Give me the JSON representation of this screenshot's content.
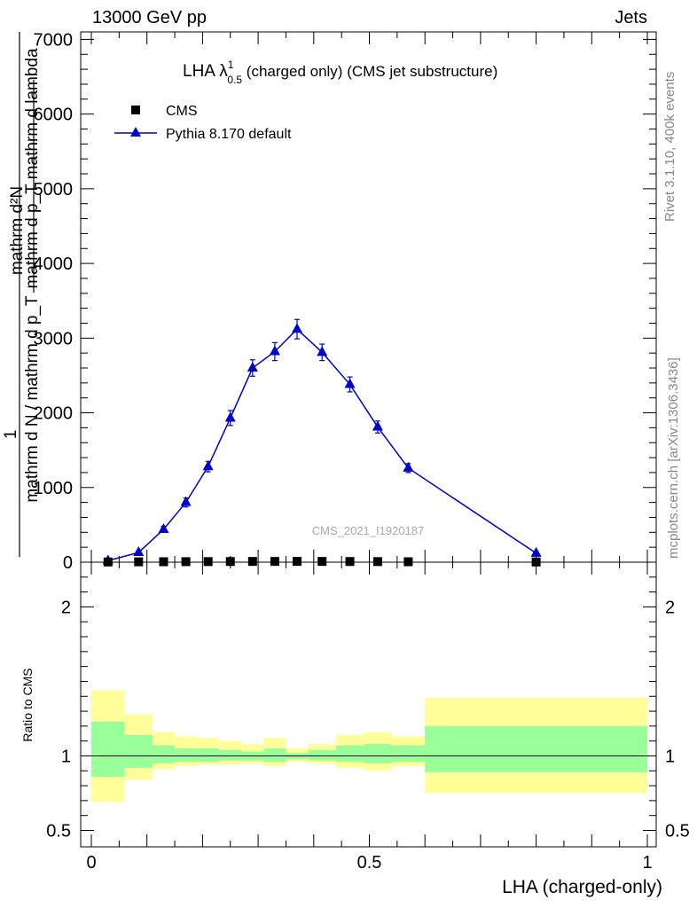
{
  "header": {
    "left": "13000 GeV pp",
    "right": "Jets"
  },
  "side_text": {
    "top": "Rivet 3.1.10,  400k events",
    "bottom": "mcplots.cern.ch [arXiv:1306.3436]"
  },
  "colors": {
    "mc_line": "#0000cc",
    "data_marker": "#000000",
    "band_inner": "#99ff99",
    "band_outer": "#ffff99"
  },
  "chart_data": [
    {
      "type": "line",
      "title": "LHA λ¹₀.₅ (charged only) (CMS jet substructure)",
      "title_main": "LHA λ",
      "title_sup": "1",
      "title_sub": "0.5",
      "title_rest": " (charged only) (CMS jet substructure)",
      "watermark": "CMS_2021_I1920187",
      "ylabel_lines": [
        "mathrm d²N",
        "mathrm d p_T mathrm d lambda",
        "1",
        "mathrm d N / mathrm d p_T"
      ],
      "xlim": [
        0,
        1
      ],
      "ylim": [
        0,
        7100
      ],
      "yticks": [
        0,
        1000,
        2000,
        3000,
        4000,
        5000,
        6000,
        7000
      ],
      "ytick_labels": [
        "0",
        "1000",
        "2000",
        "3000",
        "4000",
        "5000",
        "6000",
        "7000"
      ],
      "legend": {
        "position": "top-left",
        "entries": [
          "CMS",
          "Pythia 8.170 default"
        ]
      },
      "series": [
        {
          "name": "CMS",
          "marker": "square",
          "x": [
            0.03,
            0.085,
            0.13,
            0.17,
            0.21,
            0.25,
            0.29,
            0.33,
            0.37,
            0.415,
            0.465,
            0.515,
            0.57,
            0.8
          ],
          "y": [
            3,
            5,
            6,
            7,
            8,
            9,
            10,
            10,
            11,
            10,
            9,
            8,
            6,
            3
          ]
        },
        {
          "name": "Pythia 8.170 default",
          "marker": "triangle",
          "x": [
            0.03,
            0.085,
            0.13,
            0.17,
            0.21,
            0.25,
            0.29,
            0.33,
            0.37,
            0.415,
            0.465,
            0.515,
            0.57,
            0.8
          ],
          "y": [
            20,
            130,
            440,
            800,
            1280,
            1930,
            2600,
            2820,
            3120,
            2810,
            2380,
            1810,
            1260,
            120
          ],
          "err": [
            5,
            20,
            40,
            60,
            70,
            100,
            110,
            120,
            130,
            110,
            100,
            80,
            60,
            20
          ]
        }
      ]
    },
    {
      "type": "area",
      "ylabel": "Ratio to CMS",
      "xlabel": "LHA (charged-only)",
      "xlim": [
        0,
        1
      ],
      "ylim": [
        0.39,
        2.3
      ],
      "yticks": [
        0.5,
        1,
        2
      ],
      "ytick_labels": [
        "0.5",
        "1",
        "2"
      ],
      "xticks": [
        0,
        0.5,
        1
      ],
      "xtick_labels": [
        "0",
        "0.5",
        "1"
      ],
      "bins": [
        {
          "lo": 0.0,
          "hi": 0.06,
          "inner": [
            0.86,
            1.23
          ],
          "outer": [
            0.69,
            1.44
          ]
        },
        {
          "lo": 0.06,
          "hi": 0.11,
          "inner": [
            0.92,
            1.14
          ],
          "outer": [
            0.84,
            1.28
          ]
        },
        {
          "lo": 0.11,
          "hi": 0.15,
          "inner": [
            0.95,
            1.07
          ],
          "outer": [
            0.91,
            1.16
          ]
        },
        {
          "lo": 0.15,
          "hi": 0.19,
          "inner": [
            0.96,
            1.05
          ],
          "outer": [
            0.93,
            1.13
          ]
        },
        {
          "lo": 0.19,
          "hi": 0.23,
          "inner": [
            0.96,
            1.05
          ],
          "outer": [
            0.94,
            1.12
          ]
        },
        {
          "lo": 0.23,
          "hi": 0.27,
          "inner": [
            0.97,
            1.04
          ],
          "outer": [
            0.94,
            1.1
          ]
        },
        {
          "lo": 0.27,
          "hi": 0.31,
          "inner": [
            0.97,
            1.03
          ],
          "outer": [
            0.95,
            1.08
          ]
        },
        {
          "lo": 0.31,
          "hi": 0.35,
          "inner": [
            0.96,
            1.05
          ],
          "outer": [
            0.93,
            1.12
          ]
        },
        {
          "lo": 0.35,
          "hi": 0.39,
          "inner": [
            0.98,
            1.02
          ],
          "outer": [
            0.96,
            1.05
          ]
        },
        {
          "lo": 0.39,
          "hi": 0.44,
          "inner": [
            0.97,
            1.04
          ],
          "outer": [
            0.95,
            1.08
          ]
        },
        {
          "lo": 0.44,
          "hi": 0.49,
          "inner": [
            0.96,
            1.07
          ],
          "outer": [
            0.92,
            1.14
          ]
        },
        {
          "lo": 0.49,
          "hi": 0.54,
          "inner": [
            0.95,
            1.08
          ],
          "outer": [
            0.9,
            1.16
          ]
        },
        {
          "lo": 0.54,
          "hi": 0.6,
          "inner": [
            0.96,
            1.07
          ],
          "outer": [
            0.93,
            1.13
          ]
        },
        {
          "lo": 0.6,
          "hi": 1.0,
          "inner": [
            0.89,
            1.2
          ],
          "outer": [
            0.75,
            1.39
          ]
        }
      ],
      "reference_line": 1
    }
  ]
}
